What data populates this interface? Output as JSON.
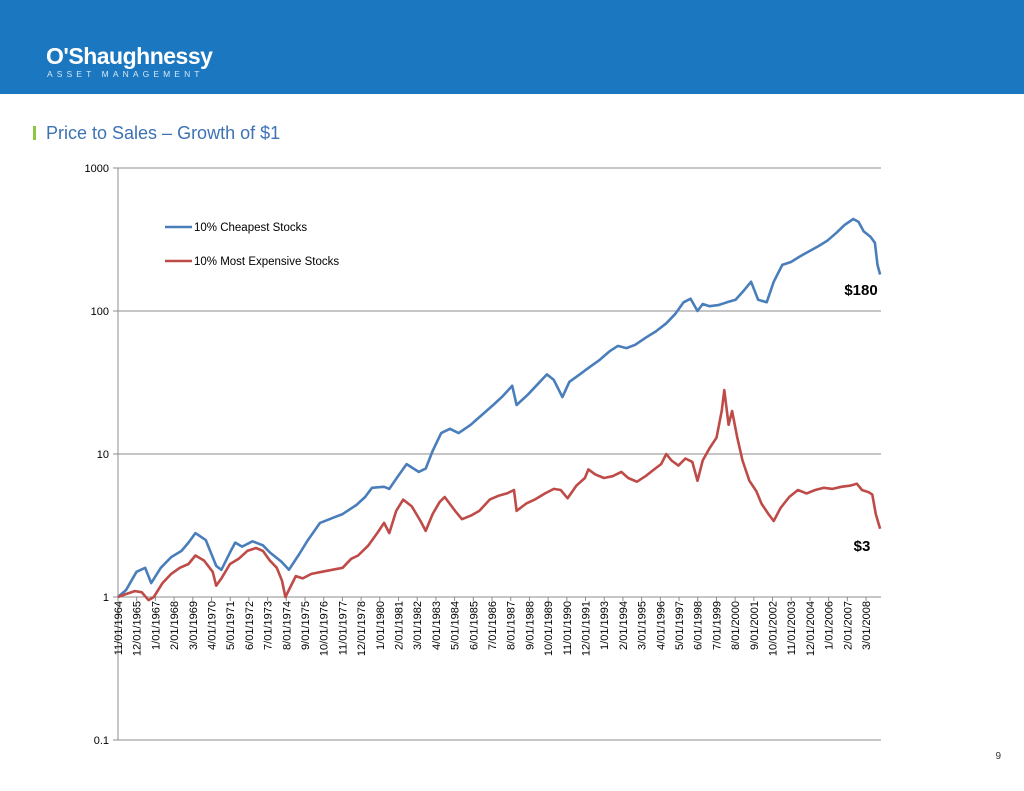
{
  "header": {
    "logo_name": "O'Shaughnessy",
    "logo_tagline": "ASSET MANAGEMENT"
  },
  "slide": {
    "title": "Price to Sales – Growth of $1",
    "page_number": "9"
  },
  "colors": {
    "header_bg": "#1b77bf",
    "title_text": "#3d72b3",
    "accent_bar": "#8dc63f",
    "series_cheapest": "#4a7ebb",
    "series_expensive": "#be4b48"
  },
  "chart_data": {
    "type": "line",
    "title": "",
    "xlabel": "",
    "ylabel": "",
    "y_scale": "log",
    "ylim": [
      0.1,
      1000
    ],
    "y_ticks": [
      "1000",
      "100",
      "10",
      "1",
      "0.1"
    ],
    "grid": "horizontal",
    "legend_position": "top-left",
    "x_tick_labels": [
      "11/01/1964",
      "12/01/1965",
      "1/01/1967",
      "2/01/1968",
      "3/01/1969",
      "4/01/1970",
      "5/01/1971",
      "6/01/1972",
      "7/01/1973",
      "8/01/1974",
      "9/01/1975",
      "10/01/1976",
      "11/01/1977",
      "12/01/1978",
      "1/01/1980",
      "2/01/1981",
      "3/01/1982",
      "4/01/1983",
      "5/01/1984",
      "6/01/1985",
      "7/01/1986",
      "8/01/1987",
      "9/01/1988",
      "10/01/1989",
      "11/01/1990",
      "12/01/1991",
      "1/01/1993",
      "2/01/1994",
      "3/01/1995",
      "4/01/1996",
      "5/01/1997",
      "6/01/1998",
      "7/01/1999",
      "8/01/2000",
      "9/01/2001",
      "10/01/2002",
      "11/01/2003",
      "12/01/2004",
      "1/01/2006",
      "2/01/2007",
      "3/01/2008"
    ],
    "series": [
      {
        "name": "10% Cheapest Stocks",
        "end_label": "$180",
        "points": [
          [
            1964.83,
            1.0
          ],
          [
            1965.3,
            1.12
          ],
          [
            1965.9,
            1.5
          ],
          [
            1966.4,
            1.6
          ],
          [
            1966.75,
            1.25
          ],
          [
            1967.3,
            1.6
          ],
          [
            1967.9,
            1.9
          ],
          [
            1968.5,
            2.1
          ],
          [
            1968.9,
            2.4
          ],
          [
            1969.3,
            2.8
          ],
          [
            1969.9,
            2.5
          ],
          [
            1970.5,
            1.65
          ],
          [
            1970.8,
            1.55
          ],
          [
            1971.3,
            2.05
          ],
          [
            1971.6,
            2.4
          ],
          [
            1972.0,
            2.25
          ],
          [
            1972.6,
            2.45
          ],
          [
            1973.2,
            2.3
          ],
          [
            1973.6,
            2.05
          ],
          [
            1974.3,
            1.75
          ],
          [
            1974.7,
            1.55
          ],
          [
            1975.3,
            2.0
          ],
          [
            1975.8,
            2.5
          ],
          [
            1976.5,
            3.3
          ],
          [
            1977.3,
            3.6
          ],
          [
            1977.8,
            3.8
          ],
          [
            1978.6,
            4.4
          ],
          [
            1979.1,
            5.0
          ],
          [
            1979.5,
            5.8
          ],
          [
            1980.2,
            5.9
          ],
          [
            1980.5,
            5.7
          ],
          [
            1981.0,
            7.0
          ],
          [
            1981.5,
            8.5
          ],
          [
            1982.2,
            7.5
          ],
          [
            1982.6,
            7.9
          ],
          [
            1983.0,
            10.5
          ],
          [
            1983.5,
            14.0
          ],
          [
            1984.0,
            15.0
          ],
          [
            1984.5,
            14.0
          ],
          [
            1985.2,
            16.0
          ],
          [
            1985.9,
            19.0
          ],
          [
            1986.5,
            22.0
          ],
          [
            1987.0,
            25.0
          ],
          [
            1987.6,
            30.0
          ],
          [
            1987.85,
            22.0
          ],
          [
            1988.5,
            26.0
          ],
          [
            1989.2,
            32.0
          ],
          [
            1989.6,
            36.0
          ],
          [
            1990.0,
            33.0
          ],
          [
            1990.5,
            25.0
          ],
          [
            1990.9,
            32.0
          ],
          [
            1991.5,
            36.0
          ],
          [
            1992.0,
            40.0
          ],
          [
            1992.6,
            45.0
          ],
          [
            1993.2,
            52.0
          ],
          [
            1993.7,
            57.0
          ],
          [
            1994.2,
            55.0
          ],
          [
            1994.7,
            58.0
          ],
          [
            1995.3,
            65.0
          ],
          [
            1995.9,
            72.0
          ],
          [
            1996.5,
            82.0
          ],
          [
            1997.0,
            95.0
          ],
          [
            1997.5,
            115.0
          ],
          [
            1997.9,
            122.0
          ],
          [
            1998.3,
            100.0
          ],
          [
            1998.6,
            112.0
          ],
          [
            1999.0,
            108.0
          ],
          [
            1999.5,
            110.0
          ],
          [
            2000.0,
            115.0
          ],
          [
            2000.5,
            120.0
          ],
          [
            2001.0,
            140.0
          ],
          [
            2001.4,
            160.0
          ],
          [
            2001.8,
            120.0
          ],
          [
            2002.3,
            115.0
          ],
          [
            2002.7,
            160.0
          ],
          [
            2003.2,
            210.0
          ],
          [
            2003.7,
            220.0
          ],
          [
            2004.2,
            240.0
          ],
          [
            2004.7,
            260.0
          ],
          [
            2005.3,
            285.0
          ],
          [
            2005.8,
            310.0
          ],
          [
            2006.3,
            350.0
          ],
          [
            2006.8,
            400.0
          ],
          [
            2007.3,
            440.0
          ],
          [
            2007.6,
            420.0
          ],
          [
            2007.9,
            360.0
          ],
          [
            2008.3,
            330.0
          ],
          [
            2008.55,
            300.0
          ],
          [
            2008.7,
            210.0
          ],
          [
            2008.85,
            180.0
          ]
        ]
      },
      {
        "name": "10% Most Expensive Stocks",
        "end_label": "$3",
        "points": [
          [
            1964.83,
            1.0
          ],
          [
            1965.3,
            1.05
          ],
          [
            1965.8,
            1.1
          ],
          [
            1966.2,
            1.08
          ],
          [
            1966.6,
            0.95
          ],
          [
            1966.9,
            1.0
          ],
          [
            1967.4,
            1.25
          ],
          [
            1967.9,
            1.45
          ],
          [
            1968.4,
            1.6
          ],
          [
            1968.9,
            1.7
          ],
          [
            1969.3,
            1.95
          ],
          [
            1969.8,
            1.8
          ],
          [
            1970.3,
            1.5
          ],
          [
            1970.5,
            1.2
          ],
          [
            1970.8,
            1.35
          ],
          [
            1971.3,
            1.7
          ],
          [
            1971.8,
            1.85
          ],
          [
            1972.3,
            2.1
          ],
          [
            1972.8,
            2.2
          ],
          [
            1973.2,
            2.1
          ],
          [
            1973.6,
            1.8
          ],
          [
            1974.0,
            1.6
          ],
          [
            1974.3,
            1.3
          ],
          [
            1974.5,
            1.0
          ],
          [
            1974.7,
            1.12
          ],
          [
            1975.1,
            1.4
          ],
          [
            1975.5,
            1.35
          ],
          [
            1976.0,
            1.45
          ],
          [
            1976.6,
            1.5
          ],
          [
            1977.2,
            1.55
          ],
          [
            1977.8,
            1.6
          ],
          [
            1978.3,
            1.85
          ],
          [
            1978.7,
            1.95
          ],
          [
            1979.3,
            2.3
          ],
          [
            1979.8,
            2.8
          ],
          [
            1980.2,
            3.3
          ],
          [
            1980.5,
            2.8
          ],
          [
            1980.9,
            4.0
          ],
          [
            1981.3,
            4.8
          ],
          [
            1981.8,
            4.3
          ],
          [
            1982.3,
            3.4
          ],
          [
            1982.6,
            2.9
          ],
          [
            1983.0,
            3.8
          ],
          [
            1983.4,
            4.6
          ],
          [
            1983.7,
            5.0
          ],
          [
            1984.3,
            4.0
          ],
          [
            1984.7,
            3.5
          ],
          [
            1985.2,
            3.7
          ],
          [
            1985.7,
            4.0
          ],
          [
            1986.3,
            4.8
          ],
          [
            1986.8,
            5.1
          ],
          [
            1987.3,
            5.3
          ],
          [
            1987.7,
            5.6
          ],
          [
            1987.85,
            4.0
          ],
          [
            1988.4,
            4.5
          ],
          [
            1988.9,
            4.8
          ],
          [
            1989.5,
            5.3
          ],
          [
            1990.0,
            5.7
          ],
          [
            1990.4,
            5.6
          ],
          [
            1990.8,
            4.9
          ],
          [
            1991.3,
            6.0
          ],
          [
            1991.8,
            6.8
          ],
          [
            1992.0,
            7.8
          ],
          [
            1992.4,
            7.2
          ],
          [
            1992.9,
            6.8
          ],
          [
            1993.4,
            7.0
          ],
          [
            1993.9,
            7.5
          ],
          [
            1994.3,
            6.8
          ],
          [
            1994.8,
            6.4
          ],
          [
            1995.3,
            7.0
          ],
          [
            1995.8,
            7.8
          ],
          [
            1996.2,
            8.5
          ],
          [
            1996.5,
            10.0
          ],
          [
            1996.8,
            9.0
          ],
          [
            1997.2,
            8.3
          ],
          [
            1997.6,
            9.3
          ],
          [
            1998.0,
            8.8
          ],
          [
            1998.3,
            6.5
          ],
          [
            1998.6,
            9.0
          ],
          [
            1999.0,
            11.0
          ],
          [
            1999.4,
            13.0
          ],
          [
            1999.7,
            20.0
          ],
          [
            1999.85,
            28.0
          ],
          [
            2000.1,
            16.0
          ],
          [
            2000.3,
            20.0
          ],
          [
            2000.6,
            13.0
          ],
          [
            2000.9,
            9.0
          ],
          [
            2001.3,
            6.5
          ],
          [
            2001.7,
            5.5
          ],
          [
            2002.0,
            4.5
          ],
          [
            2002.4,
            3.8
          ],
          [
            2002.7,
            3.4
          ],
          [
            2003.1,
            4.2
          ],
          [
            2003.6,
            5.0
          ],
          [
            2004.1,
            5.6
          ],
          [
            2004.6,
            5.3
          ],
          [
            2005.1,
            5.6
          ],
          [
            2005.6,
            5.8
          ],
          [
            2006.1,
            5.7
          ],
          [
            2006.6,
            5.9
          ],
          [
            2007.1,
            6.0
          ],
          [
            2007.5,
            6.2
          ],
          [
            2007.8,
            5.6
          ],
          [
            2008.2,
            5.4
          ],
          [
            2008.4,
            5.2
          ],
          [
            2008.6,
            3.8
          ],
          [
            2008.85,
            3.0
          ]
        ]
      }
    ]
  }
}
